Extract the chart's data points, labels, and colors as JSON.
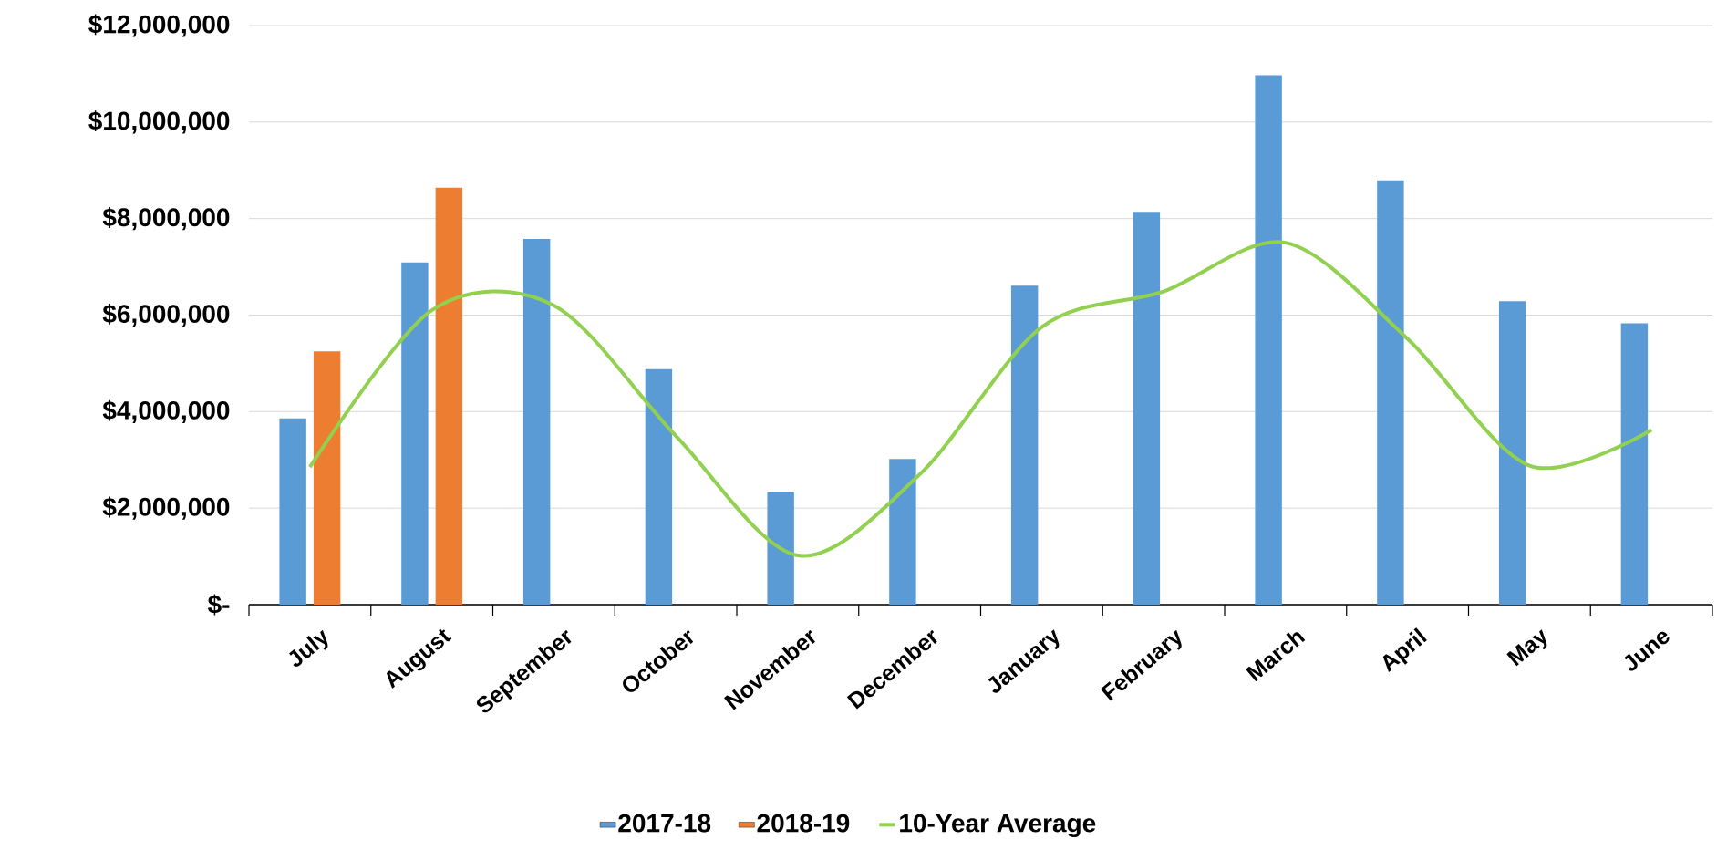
{
  "chart_data": {
    "type": "bar",
    "categories": [
      "July",
      "August",
      "September",
      "October",
      "November",
      "December",
      "January",
      "February",
      "March",
      "April",
      "May",
      "June"
    ],
    "series": [
      {
        "name": "2017-18",
        "color": "#5b9bd5",
        "values": [
          3860000,
          7090000,
          7580000,
          4880000,
          2340000,
          3020000,
          6610000,
          8140000,
          10970000,
          8790000,
          6290000,
          5830000
        ]
      },
      {
        "name": "2018-19",
        "color": "#ed7d31",
        "values": [
          5250000,
          8640000,
          null,
          null,
          null,
          null,
          null,
          null,
          null,
          null,
          null,
          null
        ]
      },
      {
        "name": "10-Year Average",
        "type": "line",
        "color": "#92d050",
        "values": [
          2850000,
          6100000,
          6200000,
          3500000,
          1020000,
          2700000,
          5750000,
          6490000,
          7500000,
          5510000,
          2880000,
          3620000
        ]
      }
    ],
    "ylim": [
      0,
      12000000
    ],
    "yticks": [
      {
        "value": 0,
        "label": "$-"
      },
      {
        "value": 2000000,
        "label": "$2,000,000"
      },
      {
        "value": 4000000,
        "label": "$4,000,000"
      },
      {
        "value": 6000000,
        "label": "$6,000,000"
      },
      {
        "value": 8000000,
        "label": "$8,000,000"
      },
      {
        "value": 10000000,
        "label": "$10,000,000"
      },
      {
        "value": 12000000,
        "label": "$12,000,000"
      }
    ],
    "grid": "y",
    "legend": "bottom"
  }
}
